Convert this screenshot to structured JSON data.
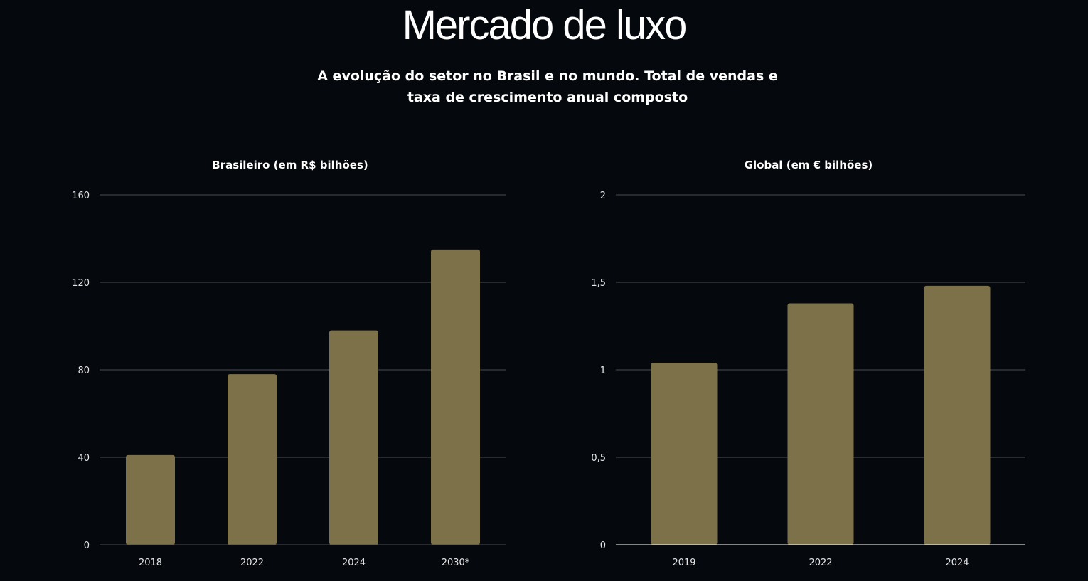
{
  "title": "Mercado de luxo",
  "subtitle": "A evolução do setor no Brasil e no mundo. Total de vendas e taxa de crescimento anual composto",
  "colors": {
    "background": "#05080c",
    "bar": "#7d714a",
    "grid": "#4a4d52"
  },
  "chart_data": [
    {
      "type": "bar",
      "title": "Brasileiro (em R$ bilhões)",
      "categories": [
        "2018",
        "2022",
        "2024",
        "2030*"
      ],
      "values": [
        41,
        78,
        98,
        135
      ],
      "ylim": [
        0,
        160
      ],
      "yticks": [
        0,
        40,
        80,
        120,
        160
      ],
      "ytick_labels": [
        "0",
        "40",
        "80",
        "120",
        "160"
      ],
      "grid": true
    },
    {
      "type": "bar",
      "title": "Global (em € bilhões)",
      "categories": [
        "2019",
        "2022",
        "2024"
      ],
      "values": [
        1.04,
        1.38,
        1.48
      ],
      "ylim": [
        0,
        2
      ],
      "yticks": [
        0,
        0.5,
        1,
        1.5,
        2
      ],
      "ytick_labels": [
        "0",
        "0,5",
        "1",
        "1,5",
        "2"
      ],
      "grid": true
    }
  ]
}
